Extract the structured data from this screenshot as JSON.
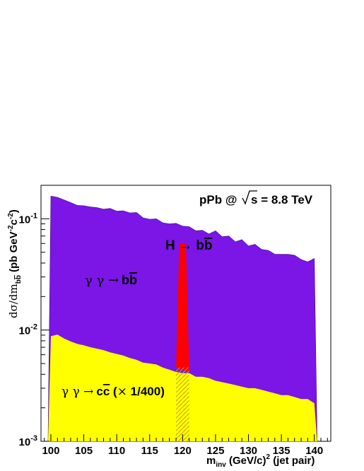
{
  "chart_data": {
    "type": "area",
    "title": "",
    "xlabel": {
      "base": "m",
      "sub": "inv",
      "rest": " (GeV/c)",
      "sup": "2",
      "tail": " (jet pair)"
    },
    "ylabel": {
      "prefix": "dσ/dm",
      "sub": "b",
      "subbar": "b",
      "middle": " (pb GeV",
      "sup1": "-2",
      "c": "c",
      "sup2": "-2",
      "close": ")"
    },
    "xlim": [
      98.5,
      142.5
    ],
    "ylim": [
      0.001,
      0.2
    ],
    "yscale": "log",
    "grid": false,
    "x_ticks": [
      100,
      105,
      110,
      115,
      120,
      125,
      130,
      135,
      140
    ],
    "y_ticks": [
      {
        "value": 0.001,
        "base": "10",
        "exp": "-3"
      },
      {
        "value": 0.01,
        "base": "10",
        "exp": "-2"
      },
      {
        "value": 0.1,
        "base": "10",
        "exp": "-1"
      }
    ],
    "series": [
      {
        "key": "gg_bb",
        "color": "#7b16e6",
        "x": [
          100,
          101,
          102,
          103,
          104,
          105,
          106,
          107,
          108,
          109,
          110,
          111,
          112,
          113,
          114,
          115,
          116,
          117,
          118,
          119,
          120,
          121,
          122,
          123,
          124,
          125,
          126,
          127,
          128,
          129,
          130,
          131,
          132,
          133,
          134,
          135,
          136,
          137,
          138,
          139,
          140
        ],
        "values": [
          0.16,
          0.156,
          0.148,
          0.14,
          0.132,
          0.131,
          0.128,
          0.126,
          0.122,
          0.124,
          0.117,
          0.118,
          0.113,
          0.114,
          0.102,
          0.099,
          0.1,
          0.092,
          0.09,
          0.091,
          0.086,
          0.085,
          0.078,
          0.079,
          0.073,
          0.078,
          0.069,
          0.07,
          0.062,
          0.065,
          0.057,
          0.059,
          0.053,
          0.052,
          0.048,
          0.048,
          0.048,
          0.047,
          0.043,
          0.041,
          0.044
        ]
      },
      {
        "key": "higgs_peak",
        "color": "#ff0000",
        "x": [
          119.0,
          119.5,
          120.0,
          120.5,
          121.0
        ],
        "values": [
          0.0046,
          0.059,
          0.061,
          0.059,
          0.0042
        ]
      },
      {
        "key": "gg_cc",
        "color": "#ffff00",
        "x": [
          100,
          101,
          102,
          103,
          104,
          105,
          106,
          107,
          108,
          109,
          110,
          111,
          112,
          113,
          114,
          115,
          116,
          117,
          118,
          119,
          120,
          121,
          122,
          123,
          124,
          125,
          126,
          127,
          128,
          129,
          130,
          131,
          132,
          133,
          134,
          135,
          136,
          137,
          138,
          139,
          140
        ],
        "values": [
          0.0088,
          0.0091,
          0.0084,
          0.0079,
          0.0075,
          0.0073,
          0.007,
          0.0068,
          0.0066,
          0.0063,
          0.0061,
          0.0059,
          0.0056,
          0.0054,
          0.0051,
          0.005,
          0.0049,
          0.0046,
          0.0044,
          0.0042,
          0.0041,
          0.0041,
          0.0038,
          0.0038,
          0.0037,
          0.0035,
          0.0034,
          0.0033,
          0.0032,
          0.0031,
          0.003,
          0.003,
          0.0029,
          0.0028,
          0.0027,
          0.0026,
          0.0026,
          0.0025,
          0.0024,
          0.0024,
          0.0022
        ]
      }
    ],
    "annotations": {
      "collision": {
        "main": "pPb @",
        "sqrt_arg": "s",
        "rest": " = 8.8 TeV"
      },
      "higgs": {
        "part1": "H → b",
        "bar": "b"
      },
      "gg_bb": {
        "gg": "γ γ →",
        "b1": "b",
        "b2": "b"
      },
      "gg_cc": {
        "gg": "γ γ →",
        "c1": "c",
        "c2": "c",
        "scale_open": " (",
        "times": "×",
        "scale": " 1/400)"
      }
    }
  }
}
